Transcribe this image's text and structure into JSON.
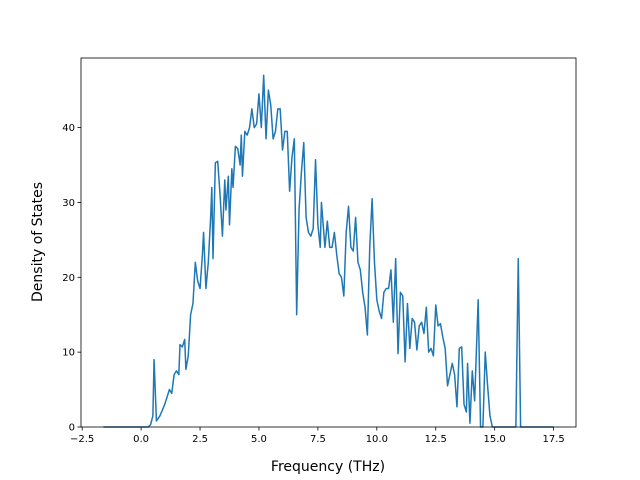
{
  "chart_data": {
    "type": "line",
    "xlabel": "Frequency (THz)",
    "ylabel": "Density of States",
    "color": "#1f77b4",
    "x": [
      -1.6,
      0.3,
      0.4,
      0.5,
      0.55,
      0.65,
      0.8,
      1.0,
      1.2,
      1.3,
      1.4,
      1.5,
      1.6,
      1.65,
      1.75,
      1.85,
      1.9,
      2.0,
      2.1,
      2.2,
      2.3,
      2.4,
      2.5,
      2.6,
      2.65,
      2.75,
      2.85,
      2.95,
      3.0,
      3.05,
      3.15,
      3.25,
      3.35,
      3.45,
      3.55,
      3.6,
      3.7,
      3.75,
      3.85,
      3.9,
      4.0,
      4.1,
      4.2,
      4.25,
      4.3,
      4.4,
      4.5,
      4.6,
      4.7,
      4.8,
      4.9,
      5.0,
      5.1,
      5.2,
      5.3,
      5.4,
      5.5,
      5.6,
      5.7,
      5.8,
      5.9,
      6.0,
      6.1,
      6.2,
      6.3,
      6.4,
      6.5,
      6.6,
      6.7,
      6.8,
      6.9,
      7.0,
      7.1,
      7.2,
      7.3,
      7.4,
      7.5,
      7.6,
      7.65,
      7.75,
      7.8,
      7.9,
      8.0,
      8.1,
      8.2,
      8.3,
      8.4,
      8.5,
      8.6,
      8.7,
      8.8,
      8.9,
      9.0,
      9.1,
      9.2,
      9.3,
      9.4,
      9.5,
      9.6,
      9.7,
      9.8,
      9.9,
      10.0,
      10.1,
      10.2,
      10.3,
      10.4,
      10.5,
      10.6,
      10.7,
      10.8,
      10.9,
      11.0,
      11.1,
      11.2,
      11.3,
      11.4,
      11.5,
      11.6,
      11.7,
      11.8,
      11.9,
      12.0,
      12.1,
      12.2,
      12.3,
      12.4,
      12.5,
      12.6,
      12.7,
      12.8,
      12.9,
      13.0,
      13.1,
      13.2,
      13.3,
      13.4,
      13.5,
      13.6,
      13.7,
      13.8,
      13.85,
      13.95,
      14.05,
      14.15,
      14.3,
      14.4,
      14.5,
      14.6,
      14.7,
      14.8,
      14.9,
      15.9,
      16.0,
      16.1,
      17.5
    ],
    "values": [
      0,
      0,
      0.3,
      1.5,
      9,
      0.8,
      1.5,
      3,
      5,
      4.5,
      7,
      7.5,
      7,
      11,
      10.7,
      11.7,
      7.7,
      9.5,
      15,
      16.5,
      22,
      19.5,
      18.5,
      23,
      26,
      18.5,
      22,
      28,
      32,
      22.5,
      35.3,
      35.5,
      31,
      25.5,
      33,
      29,
      33.5,
      27,
      34.5,
      32,
      37.5,
      37.2,
      35,
      39,
      33.5,
      39.5,
      39,
      40,
      42.5,
      40,
      40.5,
      44.5,
      40,
      47,
      38.5,
      45,
      43,
      38.5,
      39.5,
      42.5,
      42.5,
      37,
      39.5,
      39.5,
      31.5,
      36,
      38.5,
      15,
      29,
      34,
      38,
      28,
      26,
      25.5,
      26.5,
      35.7,
      27,
      24,
      30,
      26,
      24,
      27.5,
      24,
      24,
      26,
      23,
      20.5,
      20,
      17.5,
      26,
      29.5,
      24,
      23.5,
      28,
      22,
      21,
      18,
      16,
      12.3,
      24,
      30.5,
      22,
      17,
      15.5,
      14.5,
      18,
      18.5,
      18.5,
      21,
      14,
      22.5,
      9.8,
      18,
      17.5,
      8.7,
      16.5,
      10.5,
      14.5,
      14,
      10.3,
      13.5,
      14,
      12.5,
      16,
      10,
      10.5,
      9.5,
      16.3,
      13.5,
      13.8,
      12,
      10.5,
      5.5,
      7,
      8.5,
      7,
      2.7,
      10.5,
      10.7,
      3,
      2,
      8.5,
      0.5,
      7.5,
      3.5,
      17,
      0,
      0,
      10,
      5.5,
      1.5,
      0,
      0,
      22.5,
      0,
      0
    ],
    "xlim": [
      -2.55,
      18.45
    ],
    "ylim": [
      0,
      49.3
    ],
    "xticks": [
      {
        "value": -2.5,
        "label": "−2.5"
      },
      {
        "value": 0,
        "label": "0.0"
      },
      2.5,
      {
        "value": 5,
        "label": "5.0"
      },
      7.5,
      {
        "value": 10,
        "label": "10.0"
      },
      12.5,
      {
        "value": 15,
        "label": "15.0"
      },
      17.5
    ],
    "yticks": [
      0,
      10,
      20,
      30,
      40
    ]
  }
}
